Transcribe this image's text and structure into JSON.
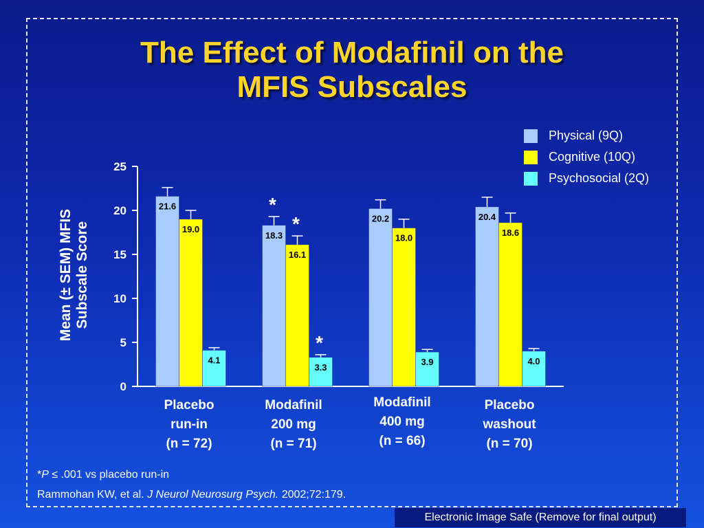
{
  "slide": {
    "title_line1": "The Effect of Modafinil on the",
    "title_line2": "MFIS Subscales",
    "footnote_marker": "*",
    "footnote_p": "P",
    "footnote_text": "≤ .001 vs placebo run-in",
    "citation_authors": "Rammohan KW, et al. ",
    "citation_journal": "J Neurol Neurosurg Psych.",
    "citation_rest": " 2002;72:179.",
    "banner": "Electronic Image Safe (Remove for final output)"
  },
  "chart_data": {
    "type": "bar",
    "ylabel_line1": "Mean (± SEM) MFIS",
    "ylabel_line2": "Subscale Score",
    "ylim": [
      0,
      25
    ],
    "yticks": [
      "0",
      "5",
      "10",
      "15",
      "20",
      "25"
    ],
    "categories": [
      {
        "line1": "Placebo",
        "line2": "run-in",
        "line3": "(n = 72)"
      },
      {
        "line1": "Modafinil",
        "line2": "200 mg",
        "line3": "(n = 71)"
      },
      {
        "line1": "Modafinil",
        "line2": "400 mg",
        "line3": "(n = 66)"
      },
      {
        "line1": "Placebo",
        "line2": "washout",
        "line3": "(n = 70)"
      }
    ],
    "series": [
      {
        "name": "Physical (9Q)",
        "color": "#a8ccff",
        "values": [
          21.6,
          18.3,
          20.2,
          20.4
        ],
        "labels": [
          "21.6",
          "18.3",
          "20.2",
          "20.4"
        ],
        "sem": [
          1.0,
          1.0,
          1.0,
          1.1
        ],
        "significant": [
          false,
          true,
          false,
          false
        ]
      },
      {
        "name": "Cognitive (10Q)",
        "color": "#ffff00",
        "values": [
          19.0,
          16.1,
          18.0,
          18.6
        ],
        "labels": [
          "19.0",
          "16.1",
          "18.0",
          "18.6"
        ],
        "sem": [
          1.0,
          1.0,
          1.0,
          1.1
        ],
        "significant": [
          false,
          true,
          false,
          false
        ]
      },
      {
        "name": "Psychosocial (2Q)",
        "color": "#66ffff",
        "values": [
          4.1,
          3.3,
          3.9,
          4.0
        ],
        "labels": [
          "4.1",
          "3.3",
          "3.9",
          "4.0"
        ],
        "sem": [
          0.3,
          0.3,
          0.3,
          0.3
        ],
        "significant": [
          false,
          true,
          false,
          false
        ]
      }
    ],
    "significance_marker": "*",
    "grid": false,
    "legend_position": "top-right"
  }
}
